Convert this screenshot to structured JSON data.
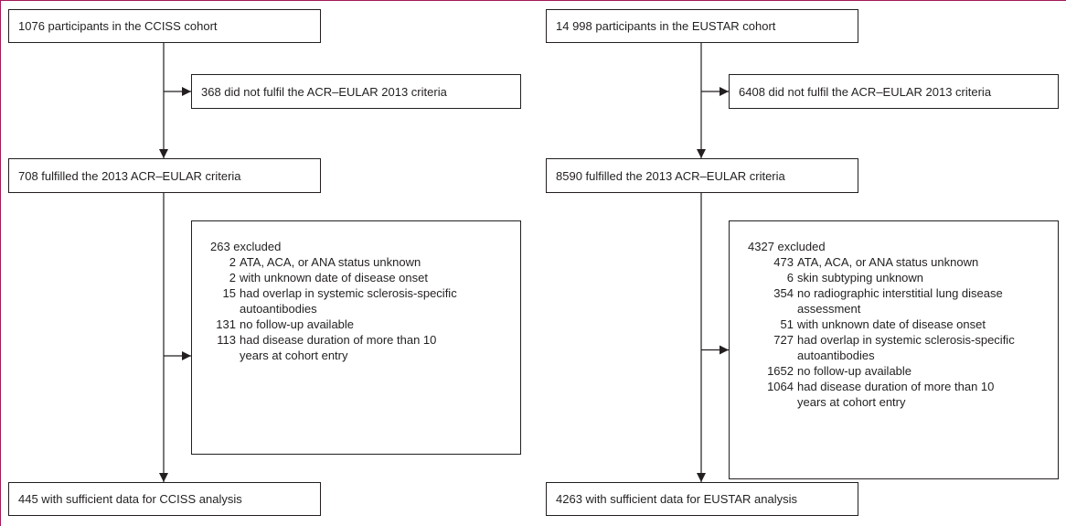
{
  "panels": [
    {
      "source": "1076 participants in the CCISS cohort",
      "not_fulfilled": "368 did not fulfil the ACR–EULAR 2013 criteria",
      "fulfilled": "708 fulfilled the 2013 ACR–EULAR criteria",
      "excluded": {
        "heading": "263 excluded",
        "items": [
          {
            "count": "2",
            "lines": [
              "ATA, ACA, or ANA status unknown"
            ]
          },
          {
            "count": "2",
            "lines": [
              "with unknown date of disease onset"
            ]
          },
          {
            "count": "15",
            "lines": [
              "had overlap in systemic sclerosis-specific",
              "autoantibodies"
            ]
          },
          {
            "count": "131",
            "lines": [
              "no follow-up available"
            ]
          },
          {
            "count": "113",
            "lines": [
              "had disease duration of more than 10",
              "years at cohort entry"
            ]
          }
        ]
      },
      "final": "445 with sufficient data for CCISS analysis"
    },
    {
      "source": "14 998 participants in the EUSTAR cohort",
      "not_fulfilled": "6408 did not fulfil the ACR–EULAR 2013 criteria",
      "fulfilled": "8590 fulfilled the 2013 ACR–EULAR criteria",
      "excluded": {
        "heading": "4327 excluded",
        "items": [
          {
            "count": "473",
            "lines": [
              "ATA, ACA, or ANA status unknown"
            ]
          },
          {
            "count": "6",
            "lines": [
              "skin subtyping unknown"
            ]
          },
          {
            "count": "354",
            "lines": [
              "no radiographic interstitial lung disease",
              "assessment"
            ]
          },
          {
            "count": "51",
            "lines": [
              "with unknown date of disease onset"
            ]
          },
          {
            "count": "727",
            "lines": [
              "had overlap in systemic sclerosis-specific",
              "autoantibodies"
            ]
          },
          {
            "count": "1652",
            "lines": [
              "no follow-up available"
            ]
          },
          {
            "count": "1064",
            "lines": [
              "had disease duration of more than 10",
              "years at cohort entry"
            ]
          }
        ]
      },
      "final": "4263 with sufficient data for EUSTAR analysis"
    }
  ]
}
